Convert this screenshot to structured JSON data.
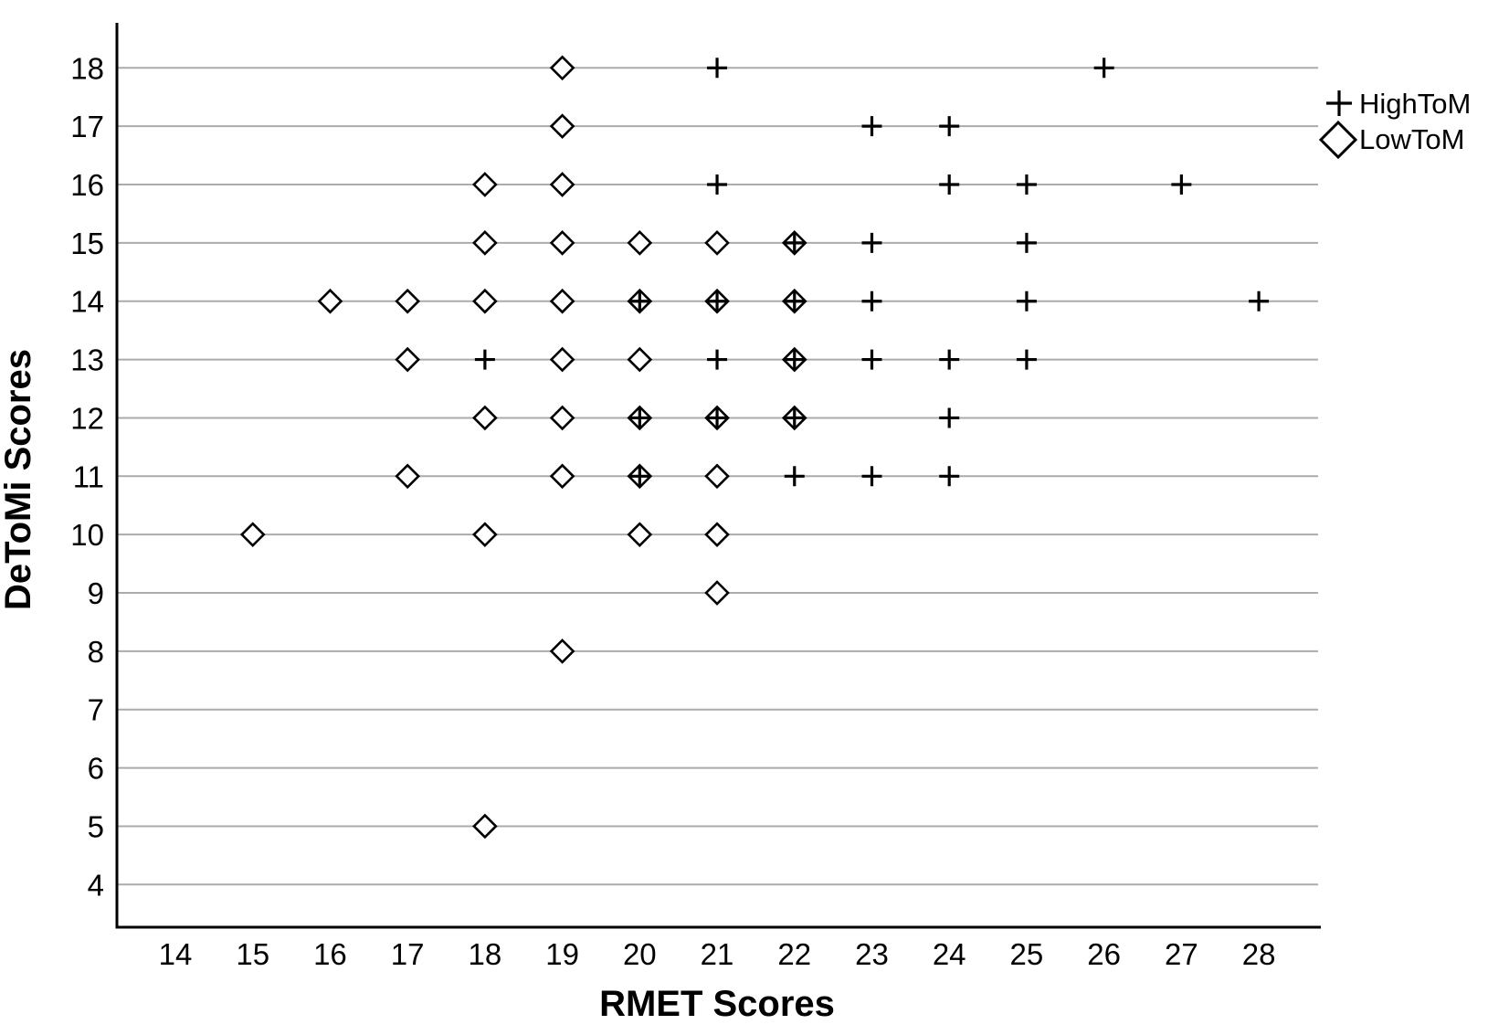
{
  "chart": {
    "legend": {
      "position": "top-right",
      "items": [
        {
          "label": "HighToM",
          "marker": "plus"
        },
        {
          "label": "LowToM",
          "marker": "diamond"
        }
      ]
    }
  },
  "chart_data": {
    "type": "scatter",
    "title": "",
    "xlabel": "RMET Scores",
    "ylabel": "DeToMi Scores",
    "x_ticks": [
      14,
      15,
      16,
      17,
      18,
      19,
      20,
      21,
      22,
      23,
      24,
      25,
      26,
      27,
      28
    ],
    "y_ticks": [
      4,
      5,
      6,
      7,
      8,
      9,
      10,
      11,
      12,
      13,
      14,
      15,
      16,
      17,
      18
    ],
    "xlim": [
      13.2,
      28.8
    ],
    "ylim": [
      3.3,
      18.8
    ],
    "grid": "horizontal-only",
    "gridline_color": "#ababab",
    "axis_color": "#000000",
    "marker_color": "#000000",
    "marker_fill": "#ffffff",
    "legend_position": "top-right",
    "series": [
      {
        "name": "HighToM",
        "marker": "plus",
        "points": [
          [
            21,
            18
          ],
          [
            26,
            18
          ],
          [
            23,
            17
          ],
          [
            24,
            17
          ],
          [
            21,
            16
          ],
          [
            24,
            16
          ],
          [
            25,
            16
          ],
          [
            27,
            16
          ],
          [
            22,
            15
          ],
          [
            23,
            15
          ],
          [
            25,
            15
          ],
          [
            20,
            14
          ],
          [
            21,
            14
          ],
          [
            22,
            14
          ],
          [
            23,
            14
          ],
          [
            25,
            14
          ],
          [
            28,
            14
          ],
          [
            18,
            13
          ],
          [
            21,
            13
          ],
          [
            22,
            13
          ],
          [
            23,
            13
          ],
          [
            24,
            13
          ],
          [
            25,
            13
          ],
          [
            20,
            12
          ],
          [
            21,
            12
          ],
          [
            22,
            12
          ],
          [
            24,
            12
          ],
          [
            20,
            11
          ],
          [
            22,
            11
          ],
          [
            23,
            11
          ],
          [
            24,
            11
          ]
        ]
      },
      {
        "name": "LowToM",
        "marker": "diamond",
        "points": [
          [
            19,
            18
          ],
          [
            19,
            17
          ],
          [
            18,
            16
          ],
          [
            19,
            16
          ],
          [
            18,
            15
          ],
          [
            19,
            15
          ],
          [
            20,
            15
          ],
          [
            21,
            15
          ],
          [
            22,
            15
          ],
          [
            16,
            14
          ],
          [
            17,
            14
          ],
          [
            18,
            14
          ],
          [
            19,
            14
          ],
          [
            20,
            14
          ],
          [
            21,
            14
          ],
          [
            22,
            14
          ],
          [
            17,
            13
          ],
          [
            19,
            13
          ],
          [
            20,
            13
          ],
          [
            22,
            13
          ],
          [
            18,
            12
          ],
          [
            19,
            12
          ],
          [
            20,
            12
          ],
          [
            21,
            12
          ],
          [
            22,
            12
          ],
          [
            17,
            11
          ],
          [
            19,
            11
          ],
          [
            20,
            11
          ],
          [
            21,
            11
          ],
          [
            15,
            10
          ],
          [
            18,
            10
          ],
          [
            20,
            10
          ],
          [
            21,
            10
          ],
          [
            21,
            9
          ],
          [
            19,
            8
          ],
          [
            18,
            5
          ]
        ]
      }
    ]
  }
}
